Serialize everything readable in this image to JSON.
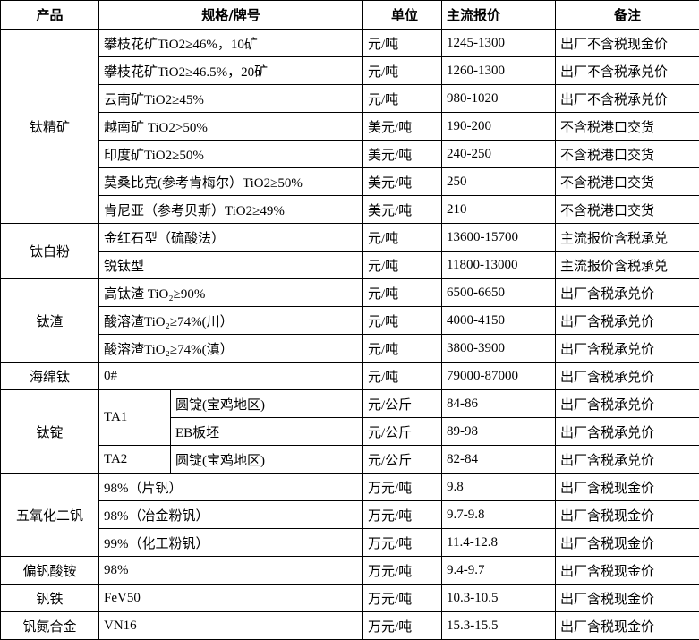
{
  "headers": [
    "产品",
    "规格/牌号",
    "单位",
    "主流报价",
    "备注"
  ],
  "groups": [
    {
      "product": "钛精矿",
      "rows": [
        {
          "spec": "攀枝花矿TiO2≥46%，10矿",
          "unit": "元/吨",
          "price": "1245-1300",
          "note": "出厂不含税现金价"
        },
        {
          "spec": "攀枝花矿TiO2≥46.5%，20矿",
          "unit": "元/吨",
          "price": "1260-1300",
          "note": "出厂不含税承兑价"
        },
        {
          "spec": "云南矿TiO2≥45%",
          "unit": "元/吨",
          "price": "980-1020",
          "note": "出厂不含税承兑价"
        },
        {
          "spec": "越南矿 TiO2>50%",
          "unit": "美元/吨",
          "price": "190-200",
          "note": "不含税港口交货"
        },
        {
          "spec": "印度矿TiO2≥50%",
          "unit": "美元/吨",
          "price": "240-250",
          "note": "不含税港口交货"
        },
        {
          "spec": "莫桑比克(参考肯梅尔）TiO2≥50%",
          "unit": "美元/吨",
          "price": "250",
          "note": "不含税港口交货"
        },
        {
          "spec": "肯尼亚（参考贝斯）TiO2≥49%",
          "unit": "美元/吨",
          "price": "210",
          "note": "不含税港口交货"
        }
      ]
    },
    {
      "product": "钛白粉",
      "rows": [
        {
          "spec": "金红石型（硫酸法）",
          "unit": "元/吨",
          "price": "13600-15700",
          "note": "主流报价含税承兑"
        },
        {
          "spec": "锐钛型",
          "unit": "元/吨",
          "price": "11800-13000",
          "note": "主流报价含税承兑"
        }
      ]
    },
    {
      "product": "钛渣",
      "rows": [
        {
          "spec": "高钛渣 TiO₂≥90%",
          "unit": "元/吨",
          "price": "6500-6650",
          "note": "出厂含税承兑价"
        },
        {
          "spec": "酸溶渣TiO₂≥74%(川）",
          "unit": "元/吨",
          "price": "4000-4150",
          "note": "出厂含税承兑价"
        },
        {
          "spec": "酸溶渣TiO₂≥74%(滇）",
          "unit": "元/吨",
          "price": "3800-3900",
          "note": "出厂含税承兑价"
        }
      ]
    },
    {
      "product": "海绵钛",
      "rows": [
        {
          "spec": "0#",
          "unit": "元/吨",
          "price": "79000-87000",
          "note": "出厂含税承兑价"
        }
      ]
    },
    {
      "product": "钛锭",
      "rows": [
        {
          "grade": "TA1",
          "grade_span": 2,
          "spec": "圆锭(宝鸡地区)",
          "unit": "元/公斤",
          "price": "84-86",
          "note": "出厂含税承兑价"
        },
        {
          "spec": "EB板坯",
          "unit": "元/公斤",
          "price": "89-98",
          "note": "出厂含税承兑价"
        },
        {
          "grade": "TA2",
          "grade_span": 1,
          "spec": "圆锭(宝鸡地区)",
          "unit": "元/公斤",
          "price": "82-84",
          "note": "出厂含税承兑价"
        }
      ]
    },
    {
      "product": "五氧化二钒",
      "rows": [
        {
          "spec": "98%（片钒）",
          "unit": "万元/吨",
          "price": "9.8",
          "note": "出厂含税现金价"
        },
        {
          "spec": "98%（冶金粉钒）",
          "unit": "万元/吨",
          "price": "9.7-9.8",
          "note": "出厂含税现金价"
        },
        {
          "spec": "99%（化工粉钒）",
          "unit": "万元/吨",
          "price": "11.4-12.8",
          "note": "出厂含税现金价"
        }
      ]
    },
    {
      "product": "偏钒酸铵",
      "rows": [
        {
          "spec": "98%",
          "unit": "万元/吨",
          "price": "9.4-9.7",
          "note": "出厂含税现金价"
        }
      ]
    },
    {
      "product": "钒铁",
      "rows": [
        {
          "spec": "FeV50",
          "unit": "万元/吨",
          "price": "10.3-10.5",
          "note": "出厂含税现金价"
        }
      ]
    },
    {
      "product": "钒氮合金",
      "rows": [
        {
          "spec": "VN16",
          "unit": "万元/吨",
          "price": "15.3-15.5",
          "note": "出厂含税现金价"
        }
      ]
    }
  ]
}
